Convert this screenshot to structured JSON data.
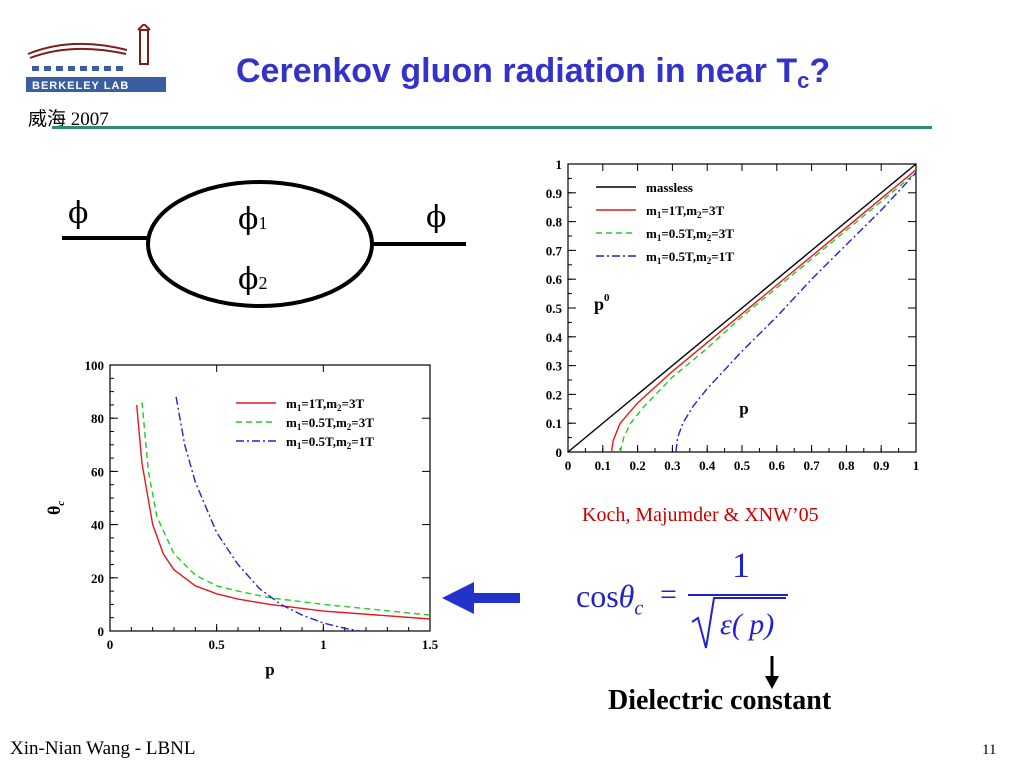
{
  "header": {
    "title_main": "Cerenkov gluon radiation in near T",
    "title_sub": "c",
    "title_end": "?",
    "logo_text": "BERKELEY LAB",
    "logo_year": "威海 2007"
  },
  "diagram": {
    "left_field": "ϕ",
    "right_field": "ϕ",
    "loop_top": "ϕ",
    "loop_top_sub": "1",
    "loop_bottom": "ϕ",
    "loop_bottom_sub": "2"
  },
  "colors": {
    "title": "#3333cc",
    "rule": "#2f8a78",
    "massless": "#000000",
    "series1": "#e41a1c",
    "series2": "#22cc22",
    "series3": "#2222cc",
    "citation": "#cc0000",
    "arrow": "#2233cc"
  },
  "chart_data": [
    {
      "type": "line",
      "title": "",
      "xlabel": "p",
      "ylabel": "θ",
      "ylabel_sub": "c",
      "xlim": [
        0,
        1.5
      ],
      "ylim": [
        0,
        100
      ],
      "xticks": [
        "0",
        "0.5",
        "1",
        "1.5"
      ],
      "yticks": [
        "0",
        "20",
        "40",
        "60",
        "80",
        "100"
      ],
      "legend_position": "top-right",
      "series": [
        {
          "name": "m1=1T,m2=3T",
          "style": "solid",
          "x": [
            0.125,
            0.15,
            0.2,
            0.25,
            0.3,
            0.4,
            0.5,
            0.6,
            0.75,
            1.0,
            1.25,
            1.5
          ],
          "y": [
            85,
            63,
            40,
            29,
            23,
            17,
            14,
            12,
            10,
            7.5,
            6,
            4.5
          ]
        },
        {
          "name": "m1=0.5T,m2=3T",
          "style": "dashed",
          "x": [
            0.15,
            0.18,
            0.22,
            0.3,
            0.4,
            0.5,
            0.6,
            0.75,
            1.0,
            1.25,
            1.5
          ],
          "y": [
            86,
            60,
            43,
            29,
            21,
            17,
            15,
            12.5,
            10,
            8,
            6
          ]
        },
        {
          "name": "m1=0.5T,m2=1T",
          "style": "dashdot",
          "x": [
            0.31,
            0.35,
            0.4,
            0.5,
            0.6,
            0.7,
            0.8,
            0.9,
            1.0,
            1.1,
            1.17
          ],
          "y": [
            88,
            70,
            56,
            37,
            25,
            16,
            10,
            6,
            3,
            1,
            0
          ]
        }
      ]
    },
    {
      "type": "line",
      "title": "",
      "xlabel": "p",
      "ylabel": "p",
      "ylabel_sup": "0",
      "xlim": [
        0,
        1
      ],
      "ylim": [
        0,
        1
      ],
      "xticks": [
        "0",
        "0.1",
        "0.2",
        "0.3",
        "0.4",
        "0.5",
        "0.6",
        "0.7",
        "0.8",
        "0.9",
        "1"
      ],
      "yticks": [
        "0",
        "0.1",
        "0.2",
        "0.3",
        "0.4",
        "0.5",
        "0.6",
        "0.7",
        "0.8",
        "0.9",
        "1"
      ],
      "legend_position": "top-left",
      "series": [
        {
          "name": "massless",
          "style": "solid-black",
          "x": [
            0.0,
            1.0
          ],
          "y": [
            0.0,
            1.0
          ]
        },
        {
          "name": "m1=1T,m2=3T",
          "style": "solid",
          "x": [
            0.125,
            0.13,
            0.15,
            0.2,
            0.3,
            0.4,
            0.5,
            0.6,
            0.7,
            0.8,
            0.9,
            1.0
          ],
          "y": [
            0.0,
            0.04,
            0.1,
            0.17,
            0.28,
            0.38,
            0.48,
            0.58,
            0.68,
            0.78,
            0.88,
            0.98
          ]
        },
        {
          "name": "m1=0.5T,m2=3T",
          "style": "dashed",
          "x": [
            0.15,
            0.16,
            0.18,
            0.22,
            0.3,
            0.4,
            0.5,
            0.6,
            0.7,
            0.8,
            0.9,
            1.0
          ],
          "y": [
            0.0,
            0.05,
            0.1,
            0.16,
            0.26,
            0.36,
            0.47,
            0.57,
            0.67,
            0.77,
            0.87,
            0.97
          ]
        },
        {
          "name": "m1=0.5T,m2=1T",
          "style": "dashdot",
          "x": [
            0.31,
            0.315,
            0.33,
            0.36,
            0.4,
            0.5,
            0.6,
            0.7,
            0.8,
            0.9,
            1.0
          ],
          "y": [
            0.0,
            0.05,
            0.1,
            0.16,
            0.22,
            0.35,
            0.47,
            0.6,
            0.72,
            0.84,
            0.97
          ]
        }
      ]
    }
  ],
  "legend_labels": [
    {
      "pre": "m",
      "s1": "1",
      "mid": "=1T,m",
      "s2": "2",
      "post": "=3T"
    },
    {
      "pre": "m",
      "s1": "1",
      "mid": "=0.5T,m",
      "s2": "2",
      "post": "=3T"
    },
    {
      "pre": "m",
      "s1": "1",
      "mid": "=0.5T,m",
      "s2": "2",
      "post": "=1T"
    }
  ],
  "massless_label": "massless",
  "citation": "Koch, Majumder & XNW’05",
  "formula": {
    "lhs": "cos",
    "theta": "θ",
    "theta_sub": "c",
    "equals": "=",
    "numerator": "1",
    "denominator": "ε( p)"
  },
  "annotation": "Dielectric constant",
  "footer": {
    "author": "Xin-Nian Wang - LBNL",
    "page": "11"
  }
}
